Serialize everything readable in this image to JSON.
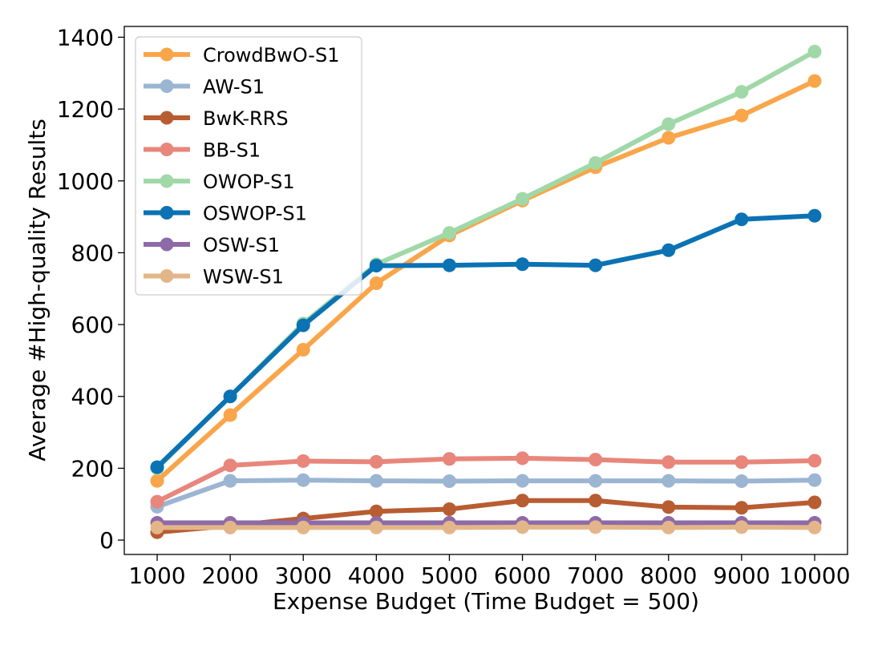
{
  "chart_data": {
    "type": "line",
    "title": "",
    "xlabel": "Expense Budget (Time Budget = 500)",
    "ylabel": "Average #High-quality Results",
    "x": [
      1000,
      2000,
      3000,
      4000,
      5000,
      6000,
      7000,
      8000,
      9000,
      10000
    ],
    "xticks": [
      "1000",
      "2000",
      "3000",
      "4000",
      "5000",
      "6000",
      "7000",
      "8000",
      "9000",
      "10000"
    ],
    "yticks": [
      0,
      200,
      400,
      600,
      800,
      1000,
      1200,
      1400
    ],
    "xlim": [
      550,
      10450
    ],
    "ylim": [
      -40,
      1430
    ],
    "grid": false,
    "legend_position": "top-left",
    "series": [
      {
        "name": "CrowdBwO-S1",
        "color": "#f9a54a",
        "values": [
          165,
          348,
          530,
          715,
          848,
          945,
          1038,
          1120,
          1182,
          1278
        ]
      },
      {
        "name": "AW-S1",
        "color": "#9bb5d3",
        "values": [
          93,
          165,
          167,
          165,
          164,
          165,
          165,
          165,
          164,
          167
        ]
      },
      {
        "name": "BwK-RRS",
        "color": "#b85c32",
        "values": [
          22,
          40,
          60,
          80,
          86,
          110,
          110,
          92,
          90,
          105
        ]
      },
      {
        "name": "BB-S1",
        "color": "#e8867c",
        "values": [
          107,
          208,
          220,
          218,
          226,
          228,
          224,
          217,
          217,
          221
        ]
      },
      {
        "name": "OWOP-S1",
        "color": "#a0d8a8",
        "values": [
          200,
          400,
          603,
          768,
          855,
          950,
          1050,
          1158,
          1248,
          1360
        ]
      },
      {
        "name": "OSWOP-S1",
        "color": "#0b72b3",
        "values": [
          203,
          400,
          598,
          764,
          765,
          768,
          765,
          807,
          893,
          903
        ]
      },
      {
        "name": "OSW-S1",
        "color": "#8e6aa8",
        "values": [
          48,
          48,
          48,
          48,
          48,
          48,
          48,
          48,
          48,
          48
        ]
      },
      {
        "name": "WSW-S1",
        "color": "#e3b68a",
        "values": [
          35,
          35,
          35,
          35,
          35,
          36,
          36,
          35,
          36,
          35
        ]
      }
    ]
  }
}
